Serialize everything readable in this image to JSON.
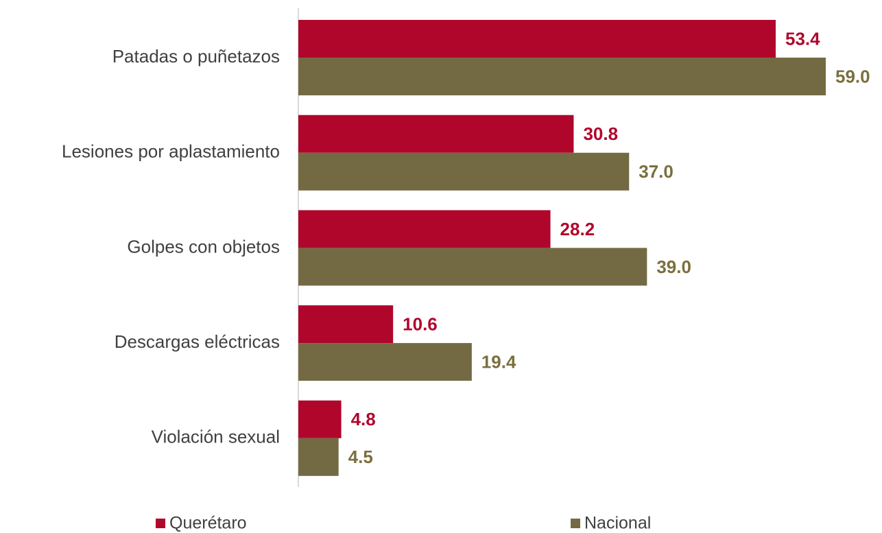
{
  "chart_data": {
    "type": "bar",
    "orientation": "horizontal",
    "categories": [
      "Patadas o puñetazos",
      "Lesiones por aplastamiento",
      "Golpes con objetos",
      "Descargas eléctricas",
      "Violación sexual"
    ],
    "series": [
      {
        "name": "Querétaro",
        "color": "#b0062c",
        "values": [
          53.4,
          30.8,
          28.2,
          10.6,
          4.8
        ],
        "value_labels": [
          "53.4",
          "30.8",
          "28.2",
          "10.6",
          "4.8"
        ]
      },
      {
        "name": "Nacional",
        "color": "#736a43",
        "values": [
          59,
          37,
          39,
          19.4,
          4.5
        ],
        "value_labels": [
          "59.0",
          "37.0",
          "39.0",
          "19.4",
          "4.5"
        ]
      }
    ]
  }
}
